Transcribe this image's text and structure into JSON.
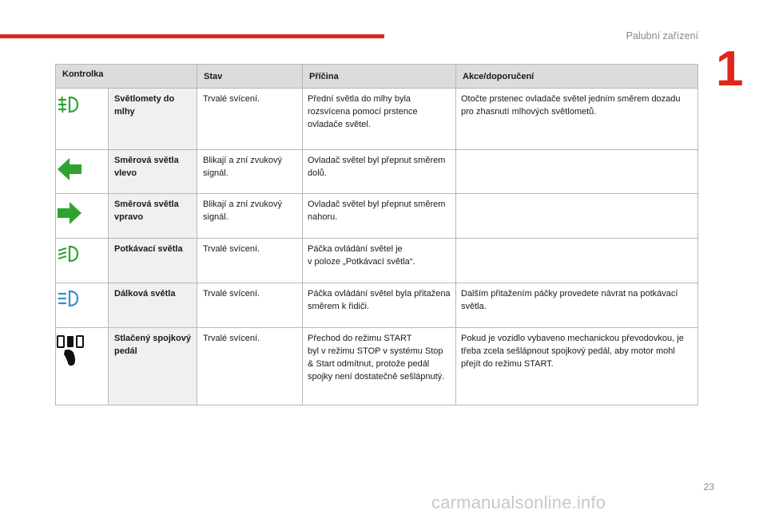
{
  "header": {
    "section_title": "Palubní zařízení",
    "chapter_number": "1"
  },
  "colors": {
    "accent_red": "#e1251b",
    "indicator_green": "#2fa32f",
    "header_gray": "#dcdcdc"
  },
  "table": {
    "headers": [
      "Kontrolka",
      "Stav",
      "Příčina",
      "Akce/doporučení"
    ],
    "rows": [
      {
        "icon": "front-fog-lights-icon",
        "name": "Světlomety do mlhy",
        "state": "Trvalé svícení.",
        "cause": "Přední světla do mlhy byla rozsvícena pomocí prstence ovladače světel.",
        "action": "Otočte prstenec ovladače světel jedním směrem dozadu pro zhasnutí mlhových světlometů."
      },
      {
        "icon": "left-turn-signal-icon",
        "name": "Směrová světla vlevo",
        "state": "Blikají a zní zvukový signál.",
        "cause": "Ovladač světel byl přepnut směrem dolů.",
        "action": ""
      },
      {
        "icon": "right-turn-signal-icon",
        "name": "Směrová světla vpravo",
        "state": "Blikají a zní zvukový signál.",
        "cause": "Ovladač světel byl přepnut směrem nahoru.",
        "action": ""
      },
      {
        "icon": "dipped-beam-icon",
        "name": "Potkávací světla",
        "state": "Trvalé svícení.",
        "cause_line1": "Páčka ovládání světel je",
        "cause_line2": "v poloze „Potkávací světla“.",
        "action": ""
      },
      {
        "icon": "main-beam-icon",
        "name": "Dálková světla",
        "state": "Trvalé svícení.",
        "cause": "Páčka ovládání světel byla přitažena směrem k řidiči.",
        "action": "Dalším přitažením páčky provedete návrat na potkávací světla."
      },
      {
        "icon": "clutch-pedal-icon",
        "name": "Stlačený spojkový pedál",
        "state": "Trvalé svícení.",
        "cause_line1": "Přechod do režimu START",
        "cause_line2": "byl v režimu STOP v systému Stop & Start odmítnut, protože pedál spojky není dostatečně sešlápnutý.",
        "action": "Pokud je vozidlo vybaveno mechanickou převodovkou, je třeba zcela sešlápnout spojkový pedál, aby motor mohl přejít do režimu START."
      }
    ]
  },
  "footer": {
    "page_number": "23",
    "watermark": "carmanualsonline.info"
  }
}
